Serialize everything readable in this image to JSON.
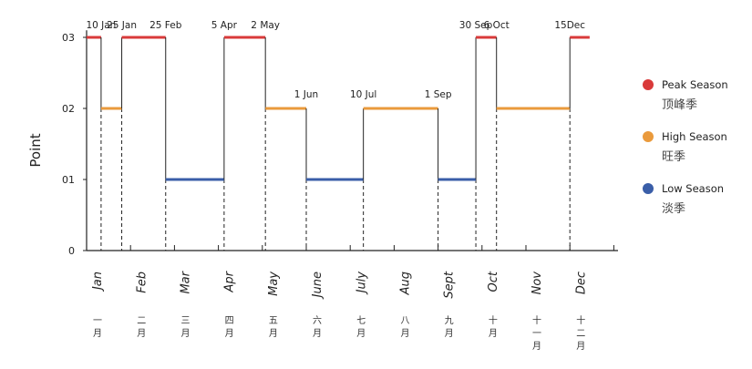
{
  "chart_data": {
    "type": "line",
    "ylabel": "Point",
    "yticks": [
      "0",
      "01",
      "02",
      "03"
    ],
    "ylim": [
      0,
      3
    ],
    "months": [
      {
        "en": "Jan",
        "cn": [
          "一",
          "月"
        ]
      },
      {
        "en": "Feb",
        "cn": [
          "二",
          "月"
        ]
      },
      {
        "en": "Mar",
        "cn": [
          "三",
          "月"
        ]
      },
      {
        "en": "Apr",
        "cn": [
          "四",
          "月"
        ]
      },
      {
        "en": "May",
        "cn": [
          "五",
          "月"
        ]
      },
      {
        "en": "June",
        "cn": [
          "六",
          "月"
        ]
      },
      {
        "en": "July",
        "cn": [
          "七",
          "月"
        ]
      },
      {
        "en": "Aug",
        "cn": [
          "八",
          "月"
        ]
      },
      {
        "en": "Sept",
        "cn": [
          "九",
          "月"
        ]
      },
      {
        "en": "Oct",
        "cn": [
          "十",
          "月"
        ]
      },
      {
        "en": "Nov",
        "cn": [
          "十",
          "一",
          "月"
        ]
      },
      {
        "en": "Dec",
        "cn": [
          "十",
          "二",
          "月"
        ]
      }
    ],
    "segments": [
      {
        "x0": 0.0,
        "x1": 0.33,
        "y": 3,
        "season": "peak"
      },
      {
        "x0": 0.33,
        "x1": 0.8,
        "y": 2,
        "season": "high"
      },
      {
        "x0": 0.8,
        "x1": 1.8,
        "y": 3,
        "season": "peak"
      },
      {
        "x0": 1.8,
        "x1": 3.13,
        "y": 1,
        "season": "low"
      },
      {
        "x0": 3.13,
        "x1": 4.07,
        "y": 3,
        "season": "peak"
      },
      {
        "x0": 4.07,
        "x1": 5.0,
        "y": 2,
        "season": "high"
      },
      {
        "x0": 5.0,
        "x1": 6.3,
        "y": 1,
        "season": "low"
      },
      {
        "x0": 6.3,
        "x1": 8.0,
        "y": 2,
        "season": "high"
      },
      {
        "x0": 8.0,
        "x1": 8.86,
        "y": 1,
        "season": "low"
      },
      {
        "x0": 8.86,
        "x1": 9.33,
        "y": 3,
        "season": "peak"
      },
      {
        "x0": 9.33,
        "x1": 11.0,
        "y": 2,
        "season": "high"
      },
      {
        "x0": 11.0,
        "x1": 11.45,
        "y": 3,
        "season": "peak"
      }
    ],
    "date_annotations": [
      {
        "text": "10 Jan",
        "x": 0.33,
        "y": 3
      },
      {
        "text": "25 Jan",
        "x": 0.8,
        "y": 3
      },
      {
        "text": "25 Feb",
        "x": 1.8,
        "y": 3
      },
      {
        "text": "5 Apr",
        "x": 3.13,
        "y": 3
      },
      {
        "text": "2 May",
        "x": 4.07,
        "y": 3
      },
      {
        "text": "1 Jun",
        "x": 5.0,
        "y": 2
      },
      {
        "text": "10 Jul",
        "x": 6.3,
        "y": 2
      },
      {
        "text": "1 Sep",
        "x": 8.0,
        "y": 2
      },
      {
        "text": "30 Sep",
        "x": 8.86,
        "y": 3
      },
      {
        "text": "6 Oct",
        "x": 9.33,
        "y": 3
      },
      {
        "text": "15Dec",
        "x": 11.0,
        "y": 3
      }
    ],
    "legend": [
      {
        "season": "peak",
        "label": "Peak Season",
        "cn": "顶峰季",
        "color": "#d93a3a"
      },
      {
        "season": "high",
        "label": "High Season",
        "cn": "旺季",
        "color": "#ea9a3c"
      },
      {
        "season": "low",
        "label": "Low Season",
        "cn": "淡季",
        "color": "#3a5ea8"
      }
    ],
    "legend_position": "right",
    "grid": false
  }
}
